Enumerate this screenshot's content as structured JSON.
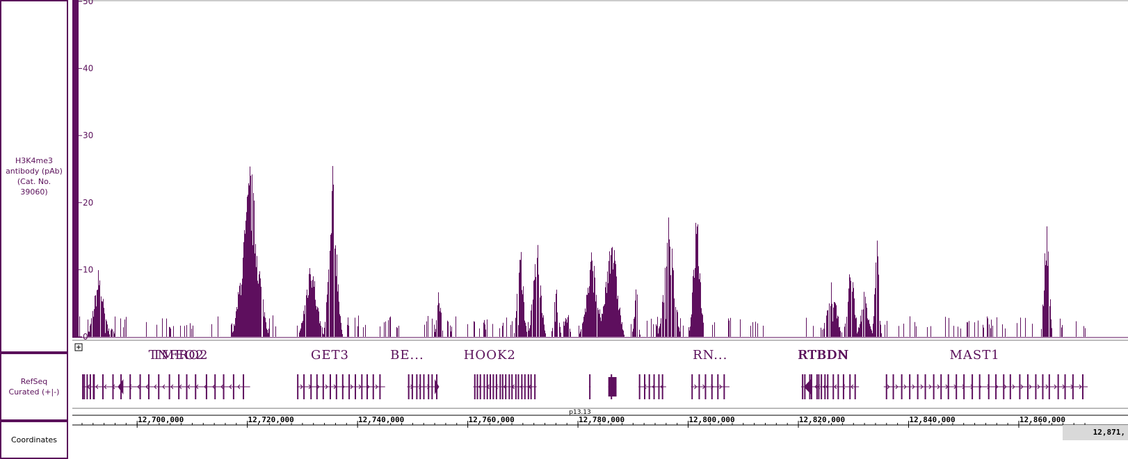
{
  "tracks": {
    "signal_label": "H3K4me3 antibody (pAb) (Cat. No. 39060)",
    "refseq_label": "RefSeq Curated (+|-)",
    "coords_label": "Coordinates"
  },
  "colors": {
    "signal": "#5e0f5e",
    "border": "#5a0f5a"
  },
  "chart_data": {
    "type": "bar",
    "title": "",
    "xlabel": "",
    "ylabel": "",
    "ylim": [
      0,
      50
    ],
    "xlim": [
      12689500,
      12872500
    ],
    "y_ticks": [
      "0",
      "10",
      "20",
      "30",
      "40",
      "50"
    ],
    "peaks": [
      {
        "pos": 12693000,
        "height": 11,
        "width": 2200,
        "dens": 0.9
      },
      {
        "pos": 12695000,
        "height": 2,
        "width": 1500,
        "dens": 0.4
      },
      {
        "pos": 12720500,
        "height": 28,
        "width": 3500,
        "dens": 0.95
      },
      {
        "pos": 12731500,
        "height": 14,
        "width": 2400,
        "dens": 0.9
      },
      {
        "pos": 12735500,
        "height": 27,
        "width": 1800,
        "dens": 0.9
      },
      {
        "pos": 12754700,
        "height": 9,
        "width": 900,
        "dens": 0.6
      },
      {
        "pos": 12756500,
        "height": 5,
        "width": 600,
        "dens": 0.5
      },
      {
        "pos": 12763000,
        "height": 4,
        "width": 500,
        "dens": 0.5
      },
      {
        "pos": 12769500,
        "height": 16,
        "width": 1300,
        "dens": 0.8
      },
      {
        "pos": 12772500,
        "height": 17,
        "width": 1700,
        "dens": 0.85
      },
      {
        "pos": 12776000,
        "height": 9,
        "width": 1000,
        "dens": 0.7
      },
      {
        "pos": 12778000,
        "height": 6,
        "width": 900,
        "dens": 0.6
      },
      {
        "pos": 12782500,
        "height": 14,
        "width": 2500,
        "dens": 0.95
      },
      {
        "pos": 12786000,
        "height": 19,
        "width": 2500,
        "dens": 0.95
      },
      {
        "pos": 12790500,
        "height": 10,
        "width": 800,
        "dens": 0.6
      },
      {
        "pos": 12796500,
        "height": 20,
        "width": 2200,
        "dens": 0.9
      },
      {
        "pos": 12801500,
        "height": 22,
        "width": 1500,
        "dens": 0.95
      },
      {
        "pos": 12826000,
        "height": 9,
        "width": 2200,
        "dens": 0.85
      },
      {
        "pos": 12829500,
        "height": 14,
        "width": 1500,
        "dens": 0.8
      },
      {
        "pos": 12832000,
        "height": 8,
        "width": 1700,
        "dens": 0.85
      },
      {
        "pos": 12834200,
        "height": 17,
        "width": 900,
        "dens": 0.85
      },
      {
        "pos": 12865000,
        "height": 22,
        "width": 1100,
        "dens": 0.85
      }
    ],
    "background_level": 2.0
  },
  "refseq": {
    "genes": [
      {
        "name": "TNFRO2",
        "label_pos": 12707500,
        "start": 12690000,
        "end": 12720500,
        "strand": "-",
        "exon_density": 18,
        "thick": [
          12696500,
          12697500
        ]
      },
      {
        "name": "TMEO2",
        "label_pos": 12707500,
        "start": 12690000,
        "end": 12692500,
        "strand": "-",
        "exon_density": 4,
        "thick": null
      },
      {
        "name": "GET3",
        "label_pos": 12735000,
        "start": 12729000,
        "end": 12745000,
        "strand": "+",
        "exon_density": 14,
        "thick": null
      },
      {
        "name": "BE...",
        "label_pos": 12749000,
        "start": 12749000,
        "end": 12754800,
        "strand": "+",
        "exon_density": 8,
        "thick": [
          12754000,
          12754800
        ]
      },
      {
        "name": "HOOK2",
        "label_pos": 12764000,
        "start": 12761000,
        "end": 12772500,
        "strand": "-",
        "exon_density": 20,
        "thick": null
      },
      {
        "name": "",
        "label_pos": 12785000,
        "start": 12782000,
        "end": 12782300,
        "strand": "",
        "exon_density": 1,
        "thick": null
      },
      {
        "name": "",
        "label_pos": 12786500,
        "start": 12785500,
        "end": 12787000,
        "strand": "",
        "exon_density": 1,
        "thick": [
          12785500,
          12787000
        ]
      },
      {
        "name": "",
        "label_pos": 12795000,
        "start": 12791000,
        "end": 12796000,
        "strand": "-",
        "exon_density": 6,
        "thick": null
      },
      {
        "name": "RN...",
        "label_pos": 12804000,
        "start": 12800500,
        "end": 12807500,
        "strand": "+",
        "exon_density": 6,
        "thick": null
      },
      {
        "name": "RTBDN",
        "label_pos": 12824500,
        "start": 12821000,
        "end": 12831000,
        "strand": "-",
        "exon_density": 10,
        "thick": [
          12821000,
          12822300
        ]
      },
      {
        "name": "RTBDN",
        "label_pos": 12824500,
        "start": 12820500,
        "end": 12826000,
        "strand": "-",
        "exon_density": 4,
        "thick": null
      },
      {
        "name": "MAST1",
        "label_pos": 12852000,
        "start": 12835500,
        "end": 12872500,
        "strand": "+",
        "exon_density": 26,
        "thick": null
      }
    ]
  },
  "coordinates": {
    "ticks": [
      12700000,
      12720000,
      12740000,
      12760000,
      12780000,
      12800000,
      12820000,
      12840000,
      12860000
    ],
    "tick_labels": [
      "12,700,000",
      "12,720,000",
      "12,740,000",
      "12,760,000",
      "12,780,000",
      "12,800,000",
      "12,820,000",
      "12,840,000",
      "12,860,000"
    ],
    "band_label": "p13.13",
    "edge_label": "12,871,"
  }
}
